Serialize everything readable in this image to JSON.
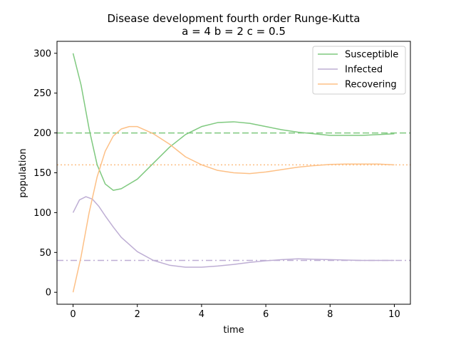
{
  "chart_data": {
    "type": "line",
    "title_line1": "Disease development fourth order Runge-Kutta",
    "title_line2": "a = 4     b = 2     c = 0.5",
    "xlabel": "time",
    "ylabel": "population",
    "xlim": [
      -0.5,
      10.5
    ],
    "ylim": [
      -15,
      315
    ],
    "x_ticks": [
      0,
      2,
      4,
      6,
      8,
      10
    ],
    "y_ticks": [
      0,
      50,
      100,
      150,
      200,
      250,
      300
    ],
    "grid": false,
    "legend_position": "top-right",
    "series": [
      {
        "name": "Susceptible",
        "color": "#7fc97f",
        "points": [
          [
            0,
            300
          ],
          [
            0.25,
            260
          ],
          [
            0.5,
            205
          ],
          [
            0.75,
            160
          ],
          [
            1.0,
            136
          ],
          [
            1.25,
            128
          ],
          [
            1.5,
            130
          ],
          [
            2.0,
            142
          ],
          [
            2.5,
            162
          ],
          [
            3.0,
            182
          ],
          [
            3.5,
            198
          ],
          [
            4.0,
            208
          ],
          [
            4.5,
            213
          ],
          [
            5.0,
            214
          ],
          [
            5.5,
            212
          ],
          [
            6.0,
            208
          ],
          [
            6.5,
            204
          ],
          [
            7.0,
            201
          ],
          [
            7.5,
            199
          ],
          [
            8.0,
            197
          ],
          [
            8.5,
            197
          ],
          [
            9.0,
            197
          ],
          [
            9.5,
            198
          ],
          [
            10.0,
            199
          ]
        ]
      },
      {
        "name": "Infected",
        "color": "#beaed4",
        "points": [
          [
            0,
            100
          ],
          [
            0.2,
            116
          ],
          [
            0.4,
            120
          ],
          [
            0.6,
            117
          ],
          [
            0.8,
            108
          ],
          [
            1.0,
            96
          ],
          [
            1.25,
            82
          ],
          [
            1.5,
            69
          ],
          [
            2.0,
            51
          ],
          [
            2.5,
            40
          ],
          [
            3.0,
            34
          ],
          [
            3.5,
            31.5
          ],
          [
            4.0,
            31.5
          ],
          [
            4.5,
            33
          ],
          [
            5.0,
            35
          ],
          [
            5.5,
            37.5
          ],
          [
            6.0,
            39.5
          ],
          [
            6.5,
            41
          ],
          [
            7.0,
            42
          ],
          [
            7.5,
            41.5
          ],
          [
            8.0,
            41
          ],
          [
            8.5,
            40.5
          ],
          [
            9.0,
            40
          ],
          [
            9.5,
            40
          ],
          [
            10.0,
            40
          ]
        ]
      },
      {
        "name": "Recovering",
        "color": "#fdc086",
        "points": [
          [
            0,
            0
          ],
          [
            0.25,
            45
          ],
          [
            0.5,
            100
          ],
          [
            0.75,
            145
          ],
          [
            1.0,
            177
          ],
          [
            1.25,
            196
          ],
          [
            1.5,
            205
          ],
          [
            1.75,
            208
          ],
          [
            2.0,
            208
          ],
          [
            2.5,
            199
          ],
          [
            3.0,
            186
          ],
          [
            3.5,
            170
          ],
          [
            4.0,
            160
          ],
          [
            4.5,
            153
          ],
          [
            5.0,
            150
          ],
          [
            5.5,
            149
          ],
          [
            6.0,
            151
          ],
          [
            6.5,
            154
          ],
          [
            7.0,
            157
          ],
          [
            7.5,
            159
          ],
          [
            8.0,
            160.5
          ],
          [
            8.5,
            161
          ],
          [
            9.0,
            161
          ],
          [
            9.5,
            161
          ],
          [
            10.0,
            160
          ]
        ]
      }
    ],
    "reference_lines": [
      {
        "value": 200,
        "color": "#7fc97f",
        "style": "dashed"
      },
      {
        "value": 160,
        "color": "#fdc086",
        "style": "dotted"
      },
      {
        "value": 40,
        "color": "#beaed4",
        "style": "dashdot"
      }
    ]
  }
}
